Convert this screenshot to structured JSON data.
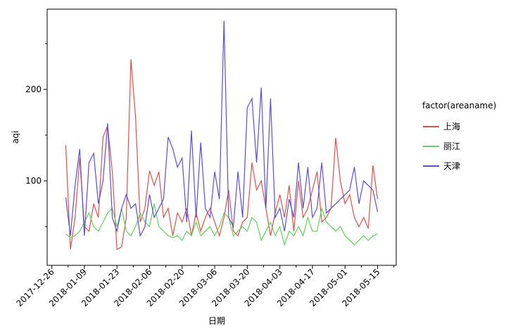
{
  "chart_data": {
    "type": "line",
    "x_label": "日期",
    "y_label": "aqi",
    "legend_title": "factor(areaname)",
    "legend_position": "right",
    "x": [
      "2018-01-01",
      "2018-01-03",
      "2018-01-05",
      "2018-01-07",
      "2018-01-09",
      "2018-01-11",
      "2018-01-13",
      "2018-01-15",
      "2018-01-17",
      "2018-01-19",
      "2018-01-21",
      "2018-01-23",
      "2018-01-25",
      "2018-01-27",
      "2018-01-29",
      "2018-01-31",
      "2018-02-02",
      "2018-02-04",
      "2018-02-06",
      "2018-02-08",
      "2018-02-10",
      "2018-02-12",
      "2018-02-14",
      "2018-02-16",
      "2018-02-18",
      "2018-02-20",
      "2018-02-22",
      "2018-02-24",
      "2018-02-26",
      "2018-02-28",
      "2018-03-02",
      "2018-03-04",
      "2018-03-06",
      "2018-03-08",
      "2018-03-10",
      "2018-03-12",
      "2018-03-14",
      "2018-03-16",
      "2018-03-18",
      "2018-03-20",
      "2018-03-22",
      "2018-03-24",
      "2018-03-26",
      "2018-03-28",
      "2018-03-30",
      "2018-04-01",
      "2018-04-03",
      "2018-04-05",
      "2018-04-07",
      "2018-04-09",
      "2018-04-11",
      "2018-04-13",
      "2018-04-15",
      "2018-04-17",
      "2018-04-19",
      "2018-04-21",
      "2018-04-23",
      "2018-04-25",
      "2018-04-27",
      "2018-04-29",
      "2018-05-01",
      "2018-05-03",
      "2018-05-05",
      "2018-05-07",
      "2018-05-09",
      "2018-05-11",
      "2018-05-13",
      "2018-05-15"
    ],
    "series": [
      {
        "name": "上海",
        "color": "#d9534a",
        "values": [
          139,
          25,
          60,
          125,
          50,
          45,
          75,
          60,
          148,
          160,
          110,
          25,
          28,
          60,
          233,
          170,
          55,
          70,
          111,
          95,
          110,
          60,
          70,
          40,
          65,
          55,
          70,
          40,
          65,
          45,
          60,
          70,
          55,
          40,
          60,
          90,
          45,
          40,
          55,
          60,
          120,
          90,
          100,
          70,
          40,
          65,
          85,
          60,
          95,
          45,
          100,
          60,
          70,
          90,
          110,
          55,
          60,
          70,
          147,
          100,
          75,
          85,
          60,
          50,
          60,
          48,
          117,
          80
        ]
      },
      {
        "name": "丽江",
        "color": "#5fd35a",
        "values": [
          42,
          38,
          40,
          45,
          55,
          65,
          50,
          45,
          55,
          65,
          70,
          50,
          70,
          45,
          40,
          50,
          65,
          55,
          50,
          75,
          50,
          45,
          40,
          38,
          40,
          35,
          45,
          40,
          55,
          40,
          45,
          50,
          40,
          50,
          65,
          60,
          40,
          45,
          50,
          45,
          60,
          55,
          35,
          45,
          55,
          40,
          50,
          30,
          45,
          40,
          50,
          40,
          60,
          45,
          45,
          70,
          55,
          50,
          45,
          50,
          40,
          35,
          30,
          35,
          40,
          35,
          40,
          42
        ]
      },
      {
        "name": "天津",
        "color": "#5a4fd4",
        "values": [
          82,
          40,
          95,
          135,
          40,
          120,
          130,
          75,
          100,
          163,
          60,
          45,
          70,
          85,
          70,
          75,
          40,
          50,
          85,
          60,
          70,
          80,
          148,
          135,
          115,
          125,
          55,
          155,
          60,
          142,
          70,
          60,
          110,
          80,
          275,
          60,
          50,
          110,
          60,
          180,
          190,
          120,
          202,
          70,
          190,
          60,
          70,
          45,
          80,
          60,
          120,
          70,
          115,
          60,
          70,
          120,
          65,
          70,
          75,
          80,
          85,
          90,
          115,
          75,
          100,
          95,
          90,
          66
        ]
      }
    ],
    "xlim": [
      "2017-12-24",
      "2018-05-23"
    ],
    "xticks": [
      "2017-12-26",
      "2018-01-09",
      "2018-01-23",
      "2018-02-06",
      "2018-02-20",
      "2018-03-06",
      "2018-03-20",
      "2018-04-03",
      "2018-04-17",
      "2018-05-01",
      "2018-05-15"
    ],
    "minor_xticks": [
      "2018-01-02",
      "2018-01-16",
      "2018-01-30",
      "2018-02-13",
      "2018-02-27",
      "2018-03-13",
      "2018-03-27",
      "2018-04-10",
      "2018-04-24",
      "2018-05-08",
      "2018-05-22"
    ],
    "ylim": [
      7.7,
      287.7
    ],
    "yticks": [
      100,
      200
    ],
    "minor_yticks": [
      50,
      150,
      250
    ]
  }
}
